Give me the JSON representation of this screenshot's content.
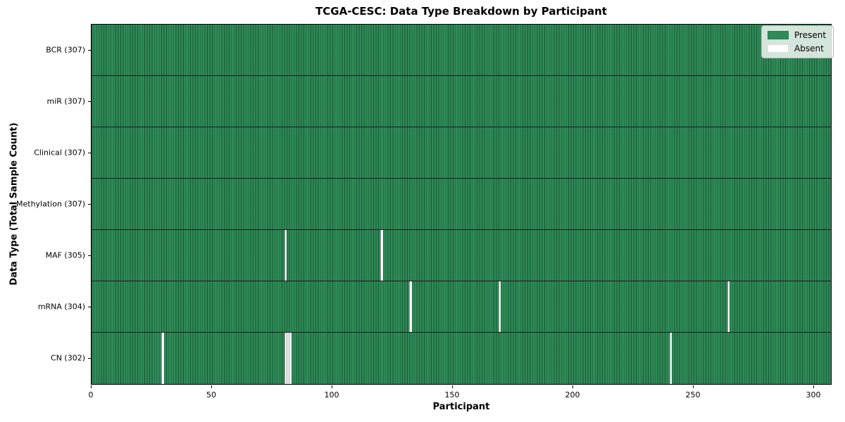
{
  "chart_data": {
    "type": "heatmap",
    "title": "TCGA-CESC: Data Type Breakdown by Participant",
    "xlabel": "Participant",
    "ylabel": "Data Type (Total Sample Count)",
    "n_participants": 307,
    "x_ticks": [
      0,
      50,
      100,
      150,
      200,
      250,
      300
    ],
    "rows": [
      {
        "label": "BCR (307)",
        "total": 307,
        "absent": []
      },
      {
        "label": "miR (307)",
        "total": 307,
        "absent": []
      },
      {
        "label": "Clinical (307)",
        "total": 307,
        "absent": []
      },
      {
        "label": "Methylation (307)",
        "total": 307,
        "absent": []
      },
      {
        "label": "MAF (305)",
        "total": 305,
        "absent": [
          80,
          120
        ]
      },
      {
        "label": "mRNA (304)",
        "total": 304,
        "absent": [
          132,
          169,
          264
        ]
      },
      {
        "label": "CN (302)",
        "total": 302,
        "absent": [
          29,
          80,
          81,
          82,
          240
        ]
      }
    ],
    "legend": [
      {
        "label": "Present",
        "color": "#2e8b57"
      },
      {
        "label": "Absent",
        "color": "#ffffff"
      }
    ],
    "colors": {
      "present": "#2e8b57",
      "absent": "#ffffff",
      "cell_edge": "rgba(10,40,24,0.55)",
      "row_divider": "#1c1c1c",
      "axis": "#000000"
    },
    "legend_position": "upper right",
    "grid": "cell-edges"
  }
}
